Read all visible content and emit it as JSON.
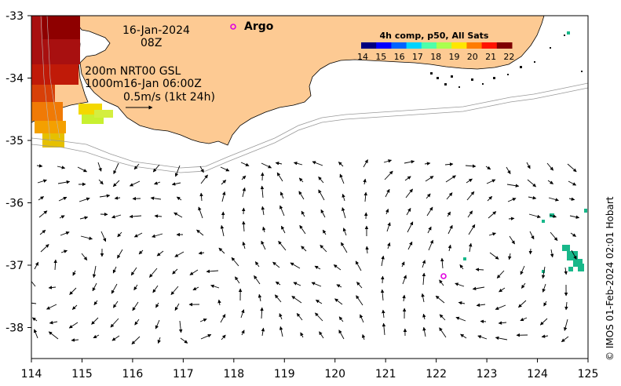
{
  "map": {
    "date_line": "16-Jan-2024",
    "time_line": "08Z",
    "product_line1": "200m  NRT00 GSL",
    "product_line2": "1000m16-Jan 06:00Z",
    "scale_label": "0.5m/s (1kt 24h)",
    "argo_label": "Argo",
    "credit": "© IMOS 01-Feb-2024 02:01 Hobart",
    "land_color": "#fdca93",
    "argo_color": "#e000e0",
    "x_ticks": [
      "114",
      "115",
      "116",
      "117",
      "118",
      "119",
      "120",
      "121",
      "122",
      "123",
      "124",
      "125"
    ],
    "y_ticks": [
      "-33",
      "-34",
      "-35",
      "-36",
      "-37",
      "-38"
    ],
    "lon_range": [
      114,
      125
    ],
    "lat_range": [
      -38.5,
      -33
    ]
  },
  "colorbar": {
    "title": "4h comp, p50, All Sats",
    "labels": [
      "14",
      "15",
      "16",
      "17",
      "18",
      "19",
      "20",
      "21",
      "22"
    ],
    "colors": [
      "#00007f",
      "#0000ff",
      "#0063ff",
      "#00d4ff",
      "#4effa9",
      "#a9ff4e",
      "#ffe600",
      "#ff7c00",
      "#ff1400",
      "#7f0000"
    ]
  }
}
